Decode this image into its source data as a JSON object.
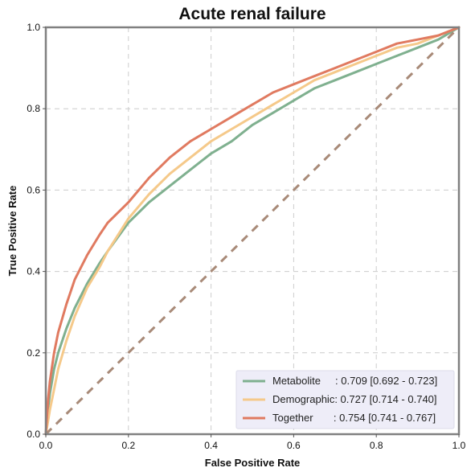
{
  "chart_data": {
    "type": "line",
    "title": "Acute renal failure",
    "xlabel": "False Positive Rate",
    "ylabel": "True Positive Rate",
    "xlim": [
      0,
      1
    ],
    "ylim": [
      0,
      1
    ],
    "xticks": [
      "0.0",
      "0.2",
      "0.4",
      "0.6",
      "0.8",
      "1.0"
    ],
    "yticks": [
      "0.0",
      "0.2",
      "0.4",
      "0.6",
      "0.8",
      "1.0"
    ],
    "grid": true,
    "legend_position": "bottom-right",
    "series": [
      {
        "name": "Metabolite",
        "legend_label": "Metabolite     : 0.709 [0.692 - 0.723]",
        "color": "#7fb08f",
        "x": [
          0,
          0.005,
          0.01,
          0.02,
          0.03,
          0.05,
          0.07,
          0.1,
          0.13,
          0.15,
          0.2,
          0.25,
          0.3,
          0.35,
          0.4,
          0.45,
          0.5,
          0.55,
          0.6,
          0.65,
          0.7,
          0.75,
          0.8,
          0.85,
          0.9,
          0.95,
          1.0
        ],
        "y": [
          0,
          0.06,
          0.1,
          0.16,
          0.2,
          0.26,
          0.31,
          0.37,
          0.42,
          0.45,
          0.52,
          0.57,
          0.61,
          0.65,
          0.69,
          0.72,
          0.76,
          0.79,
          0.82,
          0.85,
          0.87,
          0.89,
          0.91,
          0.93,
          0.95,
          0.97,
          1.0
        ]
      },
      {
        "name": "Demographic",
        "legend_label": "Demographic: 0.727 [0.714 - 0.740]",
        "color": "#f5c98a",
        "x": [
          0,
          0.005,
          0.01,
          0.02,
          0.03,
          0.05,
          0.07,
          0.1,
          0.13,
          0.15,
          0.2,
          0.25,
          0.3,
          0.35,
          0.4,
          0.45,
          0.5,
          0.55,
          0.6,
          0.65,
          0.7,
          0.75,
          0.8,
          0.85,
          0.9,
          0.95,
          1.0
        ],
        "y": [
          0,
          0.03,
          0.06,
          0.11,
          0.16,
          0.23,
          0.29,
          0.36,
          0.41,
          0.45,
          0.53,
          0.59,
          0.64,
          0.68,
          0.72,
          0.75,
          0.78,
          0.81,
          0.84,
          0.87,
          0.89,
          0.91,
          0.93,
          0.95,
          0.96,
          0.98,
          1.0
        ]
      },
      {
        "name": "Together",
        "legend_label": "Together       : 0.754 [0.741 - 0.767]",
        "color": "#e07a60",
        "x": [
          0,
          0.005,
          0.01,
          0.02,
          0.03,
          0.05,
          0.07,
          0.1,
          0.13,
          0.15,
          0.2,
          0.25,
          0.3,
          0.35,
          0.4,
          0.45,
          0.5,
          0.55,
          0.6,
          0.65,
          0.7,
          0.75,
          0.8,
          0.85,
          0.9,
          0.95,
          1.0
        ],
        "y": [
          0,
          0.08,
          0.13,
          0.2,
          0.25,
          0.32,
          0.38,
          0.44,
          0.49,
          0.52,
          0.57,
          0.63,
          0.68,
          0.72,
          0.75,
          0.78,
          0.81,
          0.84,
          0.86,
          0.88,
          0.9,
          0.92,
          0.94,
          0.96,
          0.97,
          0.98,
          1.0
        ]
      },
      {
        "name": "",
        "color": "#a88a78",
        "dashed": true,
        "x": [
          0,
          1
        ],
        "y": [
          0,
          1
        ]
      }
    ]
  }
}
